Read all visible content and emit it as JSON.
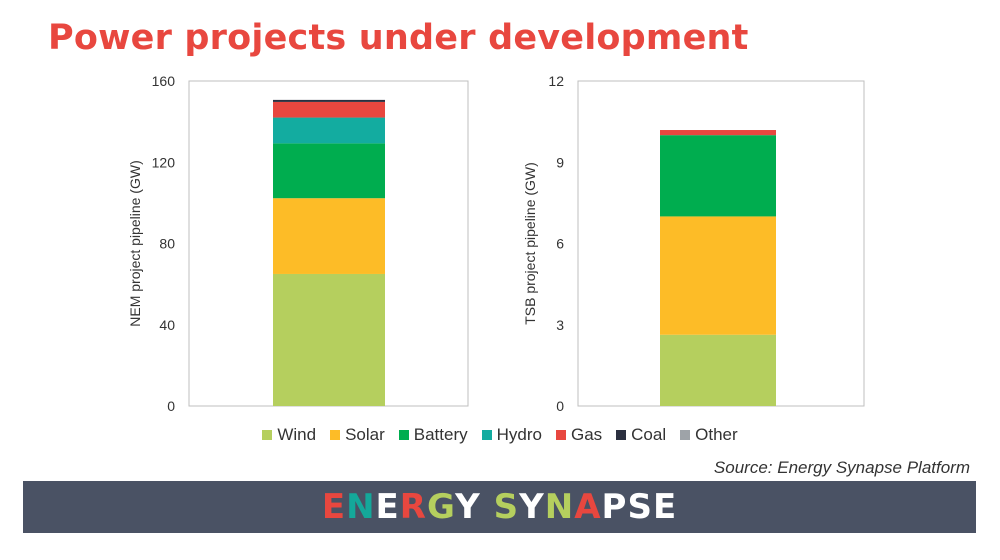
{
  "title": "Power projects under development",
  "source": "Source: Energy Synapse Platform",
  "logo": {
    "text": "ENERGY SYNAPSE",
    "letters": [
      {
        "c": "E",
        "color": "#e8473f"
      },
      {
        "c": "N",
        "color": "#14a89a"
      },
      {
        "c": "E",
        "color": "#ffffff"
      },
      {
        "c": "R",
        "color": "#e8473f"
      },
      {
        "c": "G",
        "color": "#b5cf5e"
      },
      {
        "c": "Y",
        "color": "#ffffff"
      },
      {
        "c": " ",
        "color": "#ffffff"
      },
      {
        "c": "S",
        "color": "#b5cf5e"
      },
      {
        "c": "Y",
        "color": "#ffffff"
      },
      {
        "c": "N",
        "color": "#b5cf5e"
      },
      {
        "c": "A",
        "color": "#e8473f"
      },
      {
        "c": "P",
        "color": "#ffffff"
      },
      {
        "c": "S",
        "color": "#ffffff"
      },
      {
        "c": "E",
        "color": "#ffffff"
      }
    ]
  },
  "legend": [
    {
      "name": "Wind",
      "color": "#b5cf5e"
    },
    {
      "name": "Solar",
      "color": "#fdbc27"
    },
    {
      "name": "Battery",
      "color": "#00ad4f"
    },
    {
      "name": "Hydro",
      "color": "#13aca0"
    },
    {
      "name": "Gas",
      "color": "#e8473f"
    },
    {
      "name": "Coal",
      "color": "#2b3040"
    },
    {
      "name": "Other",
      "color": "#9ea3a8"
    }
  ],
  "chart_data": [
    {
      "type": "bar",
      "stacked": true,
      "ylabel": "NEM project pipeline (GW)",
      "ylim": [
        0,
        160
      ],
      "yticks": [
        0,
        40,
        80,
        120,
        160
      ],
      "categories": [
        ""
      ],
      "series": [
        {
          "name": "Wind",
          "values": [
            65
          ]
        },
        {
          "name": "Solar",
          "values": [
            37.3
          ]
        },
        {
          "name": "Battery",
          "values": [
            27
          ]
        },
        {
          "name": "Hydro",
          "values": [
            12.7
          ]
        },
        {
          "name": "Gas",
          "values": [
            7.7
          ]
        },
        {
          "name": "Coal",
          "values": [
            1.0
          ]
        },
        {
          "name": "Other",
          "values": [
            0
          ]
        }
      ],
      "grid": false,
      "legend": "bottom"
    },
    {
      "type": "bar",
      "stacked": true,
      "ylabel": "TSB project pipeline (GW)",
      "ylim": [
        0,
        12
      ],
      "yticks": [
        0,
        3,
        6,
        9,
        12
      ],
      "categories": [
        ""
      ],
      "series": [
        {
          "name": "Wind",
          "values": [
            2.63
          ]
        },
        {
          "name": "Solar",
          "values": [
            4.37
          ]
        },
        {
          "name": "Battery",
          "values": [
            3.0
          ]
        },
        {
          "name": "Hydro",
          "values": [
            0
          ]
        },
        {
          "name": "Gas",
          "values": [
            0.19
          ]
        },
        {
          "name": "Coal",
          "values": [
            0
          ]
        },
        {
          "name": "Other",
          "values": [
            0
          ]
        }
      ],
      "grid": false,
      "legend": "bottom"
    }
  ]
}
